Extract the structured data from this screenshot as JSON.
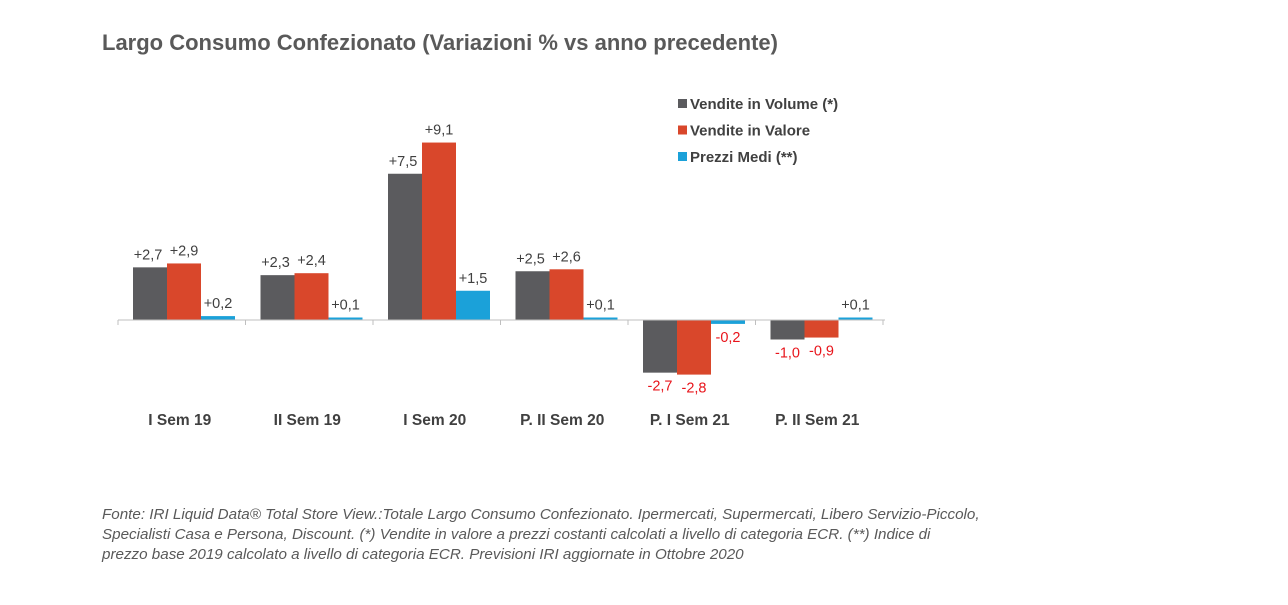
{
  "title": "Largo Consumo Confezionato (Variazioni % vs anno precedente)",
  "chart_data": {
    "type": "bar",
    "title": "Largo Consumo Confezionato (Variazioni % vs anno precedente)",
    "categories": [
      "I Sem 19",
      "II Sem 19",
      "I Sem 20",
      "P. II Sem 20",
      "P. I Sem 21",
      "P. II Sem 21"
    ],
    "series": [
      {
        "name": "Vendite in Volume (*)",
        "color": "#5b5b5e",
        "values": [
          2.7,
          2.3,
          7.5,
          2.5,
          -2.7,
          -1.0
        ],
        "labels": [
          "+2,7",
          "+2,3",
          "+7,5",
          "+2,5",
          "-2,7",
          "-1,0"
        ]
      },
      {
        "name": "Vendite in Valore",
        "color": "#d9472b",
        "values": [
          2.9,
          2.4,
          9.1,
          2.6,
          -2.8,
          -0.9
        ],
        "labels": [
          "+2,9",
          "+2,4",
          "+9,1",
          "+2,6",
          "-2,8",
          "-0,9"
        ]
      },
      {
        "name": "Prezzi Medi (**)",
        "color": "#1ba1d9",
        "values": [
          0.2,
          0.1,
          1.5,
          0.1,
          -0.2,
          0.1
        ],
        "labels": [
          "+0,2",
          "+0,1",
          "+1,5",
          "+0,1",
          "-0,2",
          "+0,1"
        ]
      }
    ],
    "positive_label_color": "#404040",
    "negative_label_color": "#e8141b",
    "legend_position": "top-right",
    "grid": false
  },
  "footnote": [
    "Fonte: IRI Liquid Data® Total Store View.:Totale Largo Consumo Confezionato. Ipermercati, Supermercati, Libero Servizio-Piccolo,",
    "Specialisti Casa e Persona, Discount.  (*) Vendite in valore  a prezzi costanti calcolati a livello di categoria ECR. (**) Indice di",
    "prezzo base 2019 calcolato a livello di categoria ECR. Previsioni IRI aggiornate in Ottobre 2020"
  ]
}
